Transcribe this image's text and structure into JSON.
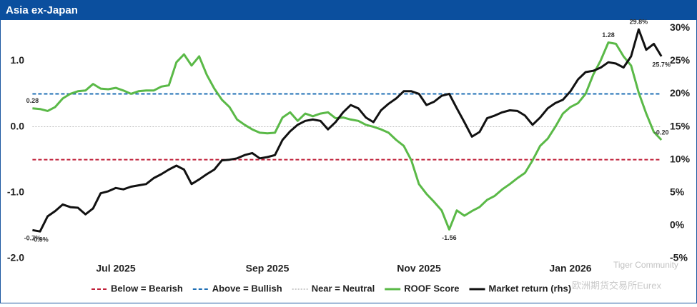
{
  "chart_data": {
    "type": "line",
    "title": "Asia ex-Japan",
    "categories": [
      null,
      null,
      null,
      null,
      null,
      null,
      null,
      null,
      null,
      null,
      null,
      "Jul 2025",
      null,
      null,
      null,
      null,
      null,
      null,
      null,
      null,
      null,
      null,
      null,
      null,
      null,
      null,
      null,
      null,
      null,
      null,
      null,
      "Sep 2025",
      null,
      null,
      null,
      null,
      null,
      null,
      null,
      null,
      null,
      null,
      null,
      null,
      null,
      null,
      null,
      null,
      null,
      null,
      null,
      "Nov 2025",
      null,
      null,
      null,
      null,
      null,
      null,
      null,
      null,
      null,
      null,
      null,
      null,
      null,
      null,
      null,
      null,
      null,
      null,
      null,
      "Jan 2026",
      null,
      null,
      null,
      null,
      null,
      null,
      null,
      null,
      null,
      null,
      null,
      null
    ],
    "ylim": [
      -2.0,
      1.6
    ],
    "yticks": [
      {
        "value": -2,
        "label": "-2.0"
      },
      {
        "value": -1,
        "label": "-1.0"
      },
      {
        "value": 0,
        "label": "0.0"
      },
      {
        "value": 1,
        "label": "1.0"
      }
    ],
    "y2lim": [
      -5,
      31
    ],
    "y2ticks": [
      {
        "value": -5,
        "label": "-5%"
      },
      {
        "value": 0,
        "label": "0%"
      },
      {
        "value": 5,
        "label": "5%"
      },
      {
        "value": 10,
        "label": "10%"
      },
      {
        "value": 15,
        "label": "15%"
      },
      {
        "value": 20,
        "label": "20%"
      },
      {
        "value": 25,
        "label": "25%"
      },
      {
        "value": 30,
        "label": "30%"
      }
    ],
    "reference_lines": [
      {
        "name": "Below = Bearish",
        "value": -0.5,
        "color": "#c0213a",
        "style": "dashed"
      },
      {
        "name": "Above = Bullish",
        "value": 0.5,
        "color": "#1f6fb5",
        "style": "dashed"
      },
      {
        "name": "Near = Neutral",
        "value": 0,
        "color": "#bbbbbb",
        "style": "dotted"
      }
    ],
    "series": [
      {
        "name": "ROOF Score",
        "color": "#5ab947",
        "values": [
          0.28,
          0.27,
          0.24,
          0.3,
          0.43,
          0.5,
          0.54,
          0.55,
          0.65,
          0.58,
          0.57,
          0.59,
          0.55,
          0.5,
          0.54,
          0.55,
          0.55,
          0.61,
          0.63,
          0.98,
          1.1,
          0.93,
          1.07,
          0.79,
          0.58,
          0.41,
          0.3,
          0.11,
          0.03,
          -0.04,
          -0.09,
          -0.1,
          -0.09,
          0.14,
          0.22,
          0.09,
          0.2,
          0.16,
          0.2,
          0.22,
          0.13,
          0.14,
          0.11,
          0.09,
          0.03,
          0.0,
          -0.04,
          -0.09,
          -0.2,
          -0.29,
          -0.51,
          -0.87,
          -1.02,
          -1.14,
          -1.27,
          -1.56,
          -1.27,
          -1.35,
          -1.28,
          -1.22,
          -1.11,
          -1.05,
          -0.95,
          -0.87,
          -0.78,
          -0.7,
          -0.51,
          -0.29,
          -0.18,
          0.0,
          0.2,
          0.3,
          0.36,
          0.5,
          0.79,
          1.01,
          1.28,
          1.26,
          1.07,
          0.93,
          0.52,
          0.2,
          -0.08,
          -0.2
        ],
        "value_labels": [
          "0.28",
          null,
          null,
          null,
          null,
          null,
          null,
          null,
          null,
          null,
          null,
          null,
          null,
          null,
          null,
          null,
          null,
          null,
          null,
          null,
          null,
          null,
          null,
          null,
          null,
          null,
          null,
          null,
          null,
          null,
          null,
          null,
          null,
          null,
          null,
          null,
          null,
          null,
          null,
          null,
          null,
          null,
          null,
          null,
          null,
          null,
          null,
          null,
          null,
          null,
          null,
          null,
          null,
          null,
          null,
          "-1.56",
          null,
          null,
          null,
          null,
          null,
          null,
          null,
          null,
          null,
          null,
          null,
          null,
          null,
          null,
          null,
          null,
          null,
          null,
          null,
          null,
          "1.28",
          null,
          null,
          null,
          null,
          null,
          null,
          "-0.20"
        ]
      },
      {
        "name": "Market return (rhs)",
        "color": "#111111",
        "axis": "y2",
        "values": [
          -0.7,
          -0.9,
          1.4,
          2.2,
          3.2,
          2.8,
          2.7,
          1.7,
          2.6,
          4.9,
          5.2,
          5.7,
          5.5,
          5.9,
          6.1,
          6.3,
          7.2,
          7.8,
          8.5,
          9.1,
          8.5,
          6.3,
          7.0,
          7.8,
          8.5,
          9.9,
          10.0,
          10.2,
          10.7,
          11.0,
          10.2,
          10.4,
          10.7,
          13.0,
          14.3,
          15.3,
          15.9,
          16.1,
          15.9,
          14.6,
          15.7,
          17.2,
          18.3,
          17.8,
          16.4,
          15.7,
          17.5,
          18.5,
          19.3,
          20.4,
          20.4,
          20.0,
          18.3,
          18.8,
          19.7,
          20.0,
          17.8,
          15.7,
          13.5,
          14.2,
          16.3,
          16.7,
          17.2,
          17.5,
          17.4,
          16.7,
          15.3,
          16.4,
          17.8,
          18.6,
          19.1,
          20.4,
          22.2,
          23.3,
          23.5,
          24.0,
          24.8,
          24.6,
          24.0,
          25.7,
          29.8,
          26.7,
          27.6,
          25.7
        ],
        "value_labels": [
          "-0.7%",
          "-0.9%",
          null,
          null,
          null,
          null,
          null,
          null,
          null,
          null,
          null,
          null,
          null,
          null,
          null,
          null,
          null,
          null,
          null,
          null,
          null,
          null,
          null,
          null,
          null,
          null,
          null,
          null,
          null,
          null,
          null,
          null,
          null,
          null,
          null,
          null,
          null,
          null,
          null,
          null,
          null,
          null,
          null,
          null,
          null,
          null,
          null,
          null,
          null,
          null,
          null,
          null,
          null,
          null,
          null,
          null,
          null,
          null,
          null,
          null,
          null,
          null,
          null,
          null,
          null,
          null,
          null,
          null,
          null,
          null,
          null,
          null,
          null,
          null,
          null,
          null,
          null,
          null,
          null,
          null,
          "29.8%",
          null,
          null,
          "25.7%"
        ]
      }
    ],
    "watermark": [
      "Tiger Community",
      "欧洲期货交易所Eurex"
    ]
  }
}
